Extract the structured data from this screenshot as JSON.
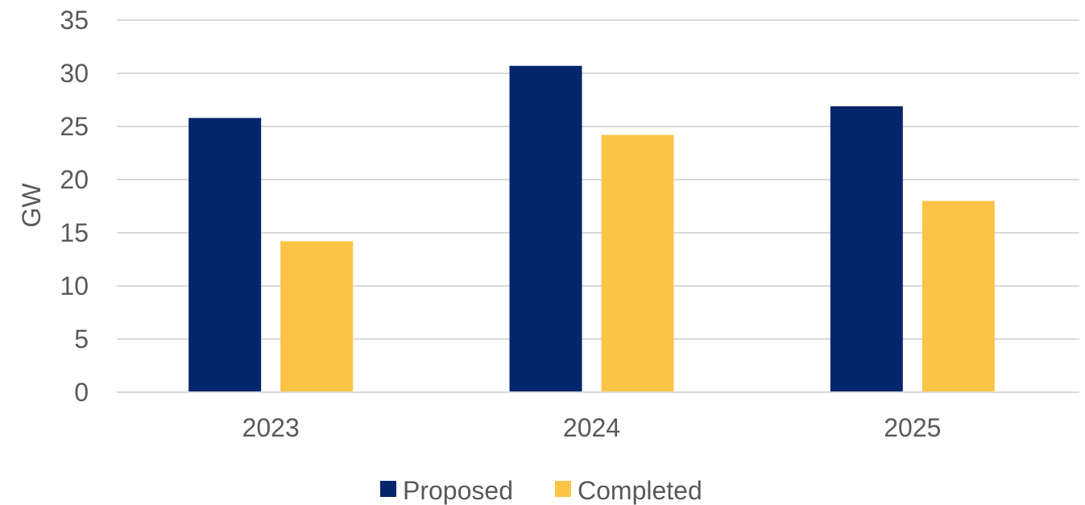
{
  "chart_data": {
    "type": "bar",
    "title": "",
    "xlabel": "",
    "ylabel": "GW",
    "categories": [
      "2023",
      "2024",
      "2025"
    ],
    "series": [
      {
        "name": "Proposed",
        "color": "#03266C",
        "values": [
          25.8,
          30.7,
          26.9
        ]
      },
      {
        "name": "Completed",
        "color": "#FCC446",
        "values": [
          14.2,
          24.2,
          18.0
        ]
      }
    ],
    "ylim": [
      0,
      35
    ],
    "yticks": [
      0,
      5,
      10,
      15,
      20,
      25,
      30,
      35
    ],
    "grid": true,
    "gridline_color": "#D9D9D9",
    "legend_position": "bottom"
  }
}
